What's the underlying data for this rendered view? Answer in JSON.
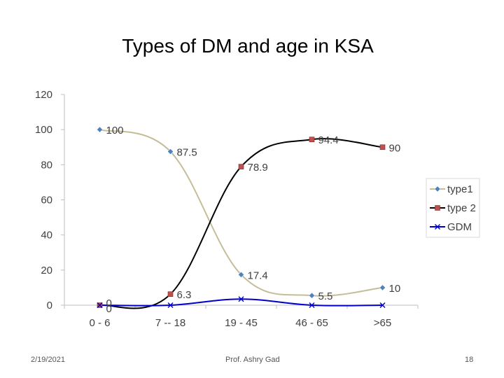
{
  "slide": {
    "title": "Types of DM and age in KSA",
    "footer_date": "2/19/2021",
    "footer_author": "Prof. Ashry Gad",
    "page_number": "18"
  },
  "chart_data": {
    "type": "line",
    "title": "Types of DM and age in KSA",
    "xlabel": "",
    "ylabel": "",
    "categories": [
      "0 - 6",
      "7 -- 18",
      "19 - 45",
      "46 - 65",
      ">65"
    ],
    "ylim": [
      0,
      120
    ],
    "yticks": [
      0,
      20,
      40,
      60,
      80,
      100,
      120
    ],
    "grid": false,
    "legend_position": "right",
    "series": [
      {
        "name": "type1",
        "values": [
          100,
          87.5,
          17.4,
          5.5,
          10
        ],
        "labels": [
          "100",
          "87.5",
          "17.4",
          "5.5",
          "10"
        ],
        "color": "#c4bd97",
        "marker": "diamond",
        "marker_color": "#4f81bd"
      },
      {
        "name": "type 2",
        "values": [
          0,
          6.3,
          78.9,
          94.4,
          90
        ],
        "labels": [
          "0",
          "6.3",
          "78.9",
          "94.4",
          "90"
        ],
        "color": "#000000",
        "marker": "square",
        "marker_color": "#c0504d"
      },
      {
        "name": "GDM",
        "values": [
          0,
          0,
          3.5,
          0,
          0
        ],
        "labels": [
          "0",
          "",
          "",
          "",
          ""
        ],
        "color": "#0000cc",
        "marker": "x",
        "marker_color": "#0000cc"
      }
    ]
  }
}
